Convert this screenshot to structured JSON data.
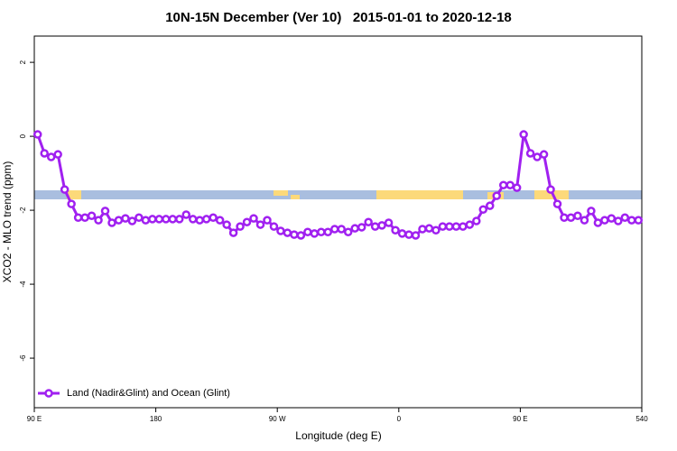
{
  "chart_data": {
    "type": "line",
    "title": "10N-15N December (Ver 10)   2015-01-01 to 2020-12-18",
    "x_label": "Longitude (deg E)",
    "y_label": "XCO2 - MLO trend (ppm)",
    "xlim": [
      90,
      540
    ],
    "xticks": [
      {
        "value": 90,
        "label": "90 E"
      },
      180,
      {
        "value": 270,
        "label": "90 W"
      },
      {
        "value": 360,
        "label": "0"
      },
      {
        "value": 450,
        "label": "90 E"
      },
      540
    ],
    "ylim": [
      -7.34,
      2.71
    ],
    "yticks": [
      2,
      0,
      -2,
      -4,
      -6
    ],
    "legend": "bottom-left",
    "x": [
      92.5,
      97.5,
      102.5,
      107.5,
      112.5,
      117.5,
      122.5,
      127.5,
      132.5,
      137.5,
      142.5,
      147.5,
      152.5,
      157.5,
      162.5,
      167.5,
      172.5,
      177.5,
      182.5,
      187.5,
      192.5,
      197.5,
      202.5,
      207.5,
      212.5,
      217.5,
      222.5,
      227.5,
      232.5,
      237.5,
      242.5,
      247.5,
      252.5,
      257.5,
      262.5,
      267.5,
      272.5,
      277.5,
      282.5,
      287.5,
      292.5,
      297.5,
      302.5,
      307.5,
      312.5,
      317.5,
      322.5,
      327.5,
      332.5,
      337.5,
      342.5,
      347.5,
      352.5,
      357.5,
      362.5,
      367.5,
      372.5,
      377.5,
      382.5,
      387.5,
      392.5,
      397.5,
      402.5,
      407.5,
      412.5,
      417.5,
      422.5,
      427.5,
      432.5,
      437.5,
      442.5,
      447.5,
      452.5,
      457.5,
      462.5,
      467.5,
      472.5,
      477.5,
      482.5,
      487.5,
      492.5,
      497.5,
      502.5,
      507.5,
      512.5,
      517.5,
      522.5,
      527.5,
      532.5,
      537.5
    ],
    "series": [
      {
        "name": "Land (Nadir&Glint) and Ocean (Glint)",
        "color": "#a020f0",
        "values": [
          0.05,
          -0.46,
          -0.56,
          -0.49,
          -1.44,
          -1.83,
          -2.2,
          -2.2,
          -2.15,
          -2.27,
          -2.02,
          -2.34,
          -2.27,
          -2.22,
          -2.29,
          -2.2,
          -2.27,
          -2.24,
          -2.24,
          -2.24,
          -2.24,
          -2.24,
          -2.12,
          -2.24,
          -2.27,
          -2.24,
          -2.2,
          -2.27,
          -2.39,
          -2.61,
          -2.44,
          -2.32,
          -2.22,
          -2.39,
          -2.27,
          -2.44,
          -2.56,
          -2.61,
          -2.66,
          -2.68,
          -2.59,
          -2.63,
          -2.59,
          -2.59,
          -2.51,
          -2.51,
          -2.59,
          -2.49,
          -2.46,
          -2.32,
          -2.44,
          -2.41,
          -2.34,
          -2.54,
          -2.63,
          -2.66,
          -2.68,
          -2.51,
          -2.49,
          -2.54,
          -2.44,
          -2.44,
          -2.44,
          -2.44,
          -2.39,
          -2.29,
          -1.98,
          -1.88,
          -1.61,
          -1.32,
          -1.32,
          -1.39,
          0.05,
          -0.46,
          -0.56,
          -0.49,
          -1.44,
          -1.83,
          -2.2,
          -2.2,
          -2.15,
          -2.27,
          -2.02,
          -2.34,
          -2.27,
          -2.22,
          -2.29,
          -2.2,
          -2.27,
          -2.27
        ]
      }
    ]
  }
}
